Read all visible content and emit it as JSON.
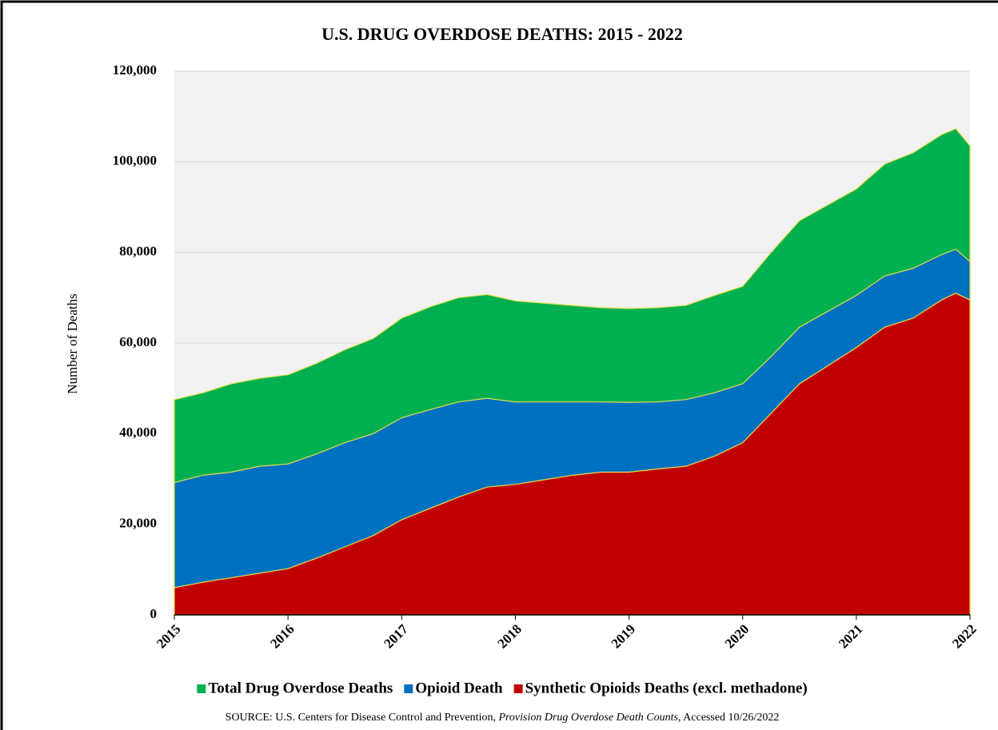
{
  "chart_data": {
    "type": "area",
    "title": "U.S. DRUG OVERDOSE DEATHS: 2015 - 2022",
    "y_label": "Number of Deaths",
    "source": [
      "SOURCE: U.S. Centers for Disease Control and Prevention, ",
      "Provision Drug Overdose Death Counts",
      ", Accessed 10/26/2022"
    ],
    "x": [
      2015,
      2015.25,
      2015.5,
      2015.75,
      2016,
      2016.25,
      2016.5,
      2016.75,
      2017,
      2017.25,
      2017.5,
      2017.75,
      2018,
      2018.25,
      2018.5,
      2018.75,
      2019,
      2019.25,
      2019.5,
      2019.75,
      2020,
      2020.25,
      2020.5,
      2020.75,
      2021,
      2021.25,
      2021.5,
      2021.75,
      2021.875,
      2022
    ],
    "xlim": [
      2015,
      2022
    ],
    "xticks": [
      2015,
      2016,
      2017,
      2018,
      2019,
      2020,
      2021,
      2022
    ],
    "ylim": [
      0,
      120000
    ],
    "yticks": [
      0,
      {
        "value": 20000,
        "label": "20,000"
      },
      {
        "value": 40000,
        "label": "40,000"
      },
      {
        "value": 60000,
        "label": "60,000"
      },
      {
        "value": 80000,
        "label": "80,000"
      },
      {
        "value": 100000,
        "label": "100,000"
      },
      {
        "value": 120000,
        "label": "120,000"
      }
    ],
    "grid": true,
    "series": [
      {
        "name": "Total Drug Overdose Deaths",
        "color": "#00b050",
        "values": [
          47500,
          49000,
          51000,
          52200,
          53000,
          55500,
          58500,
          61000,
          65500,
          68000,
          70000,
          70700,
          69300,
          68800,
          68300,
          67800,
          67600,
          67800,
          68300,
          70500,
          72500,
          80000,
          87000,
          90500,
          94000,
          99500,
          102000,
          106000,
          107300,
          103500
        ]
      },
      {
        "name": "Opioid Death",
        "color": "#0070c0",
        "values": [
          29200,
          30800,
          31500,
          32800,
          33300,
          35500,
          38000,
          40000,
          43500,
          45300,
          47000,
          47800,
          47000,
          47000,
          47000,
          47000,
          46900,
          47000,
          47500,
          49000,
          51000,
          57000,
          63500,
          67000,
          70500,
          74800,
          76500,
          79500,
          80700,
          78000
        ]
      },
      {
        "name": "Synthetic Opioids Deaths (excl. methadone)",
        "color": "#c00000",
        "values": [
          6000,
          7200,
          8200,
          9200,
          10200,
          12500,
          15000,
          17500,
          21000,
          23500,
          26000,
          28200,
          28800,
          29800,
          30800,
          31500,
          31500,
          32200,
          32800,
          35000,
          38000,
          44500,
          51000,
          55000,
          59000,
          63500,
          65500,
          69500,
          71000,
          69500
        ]
      }
    ]
  }
}
